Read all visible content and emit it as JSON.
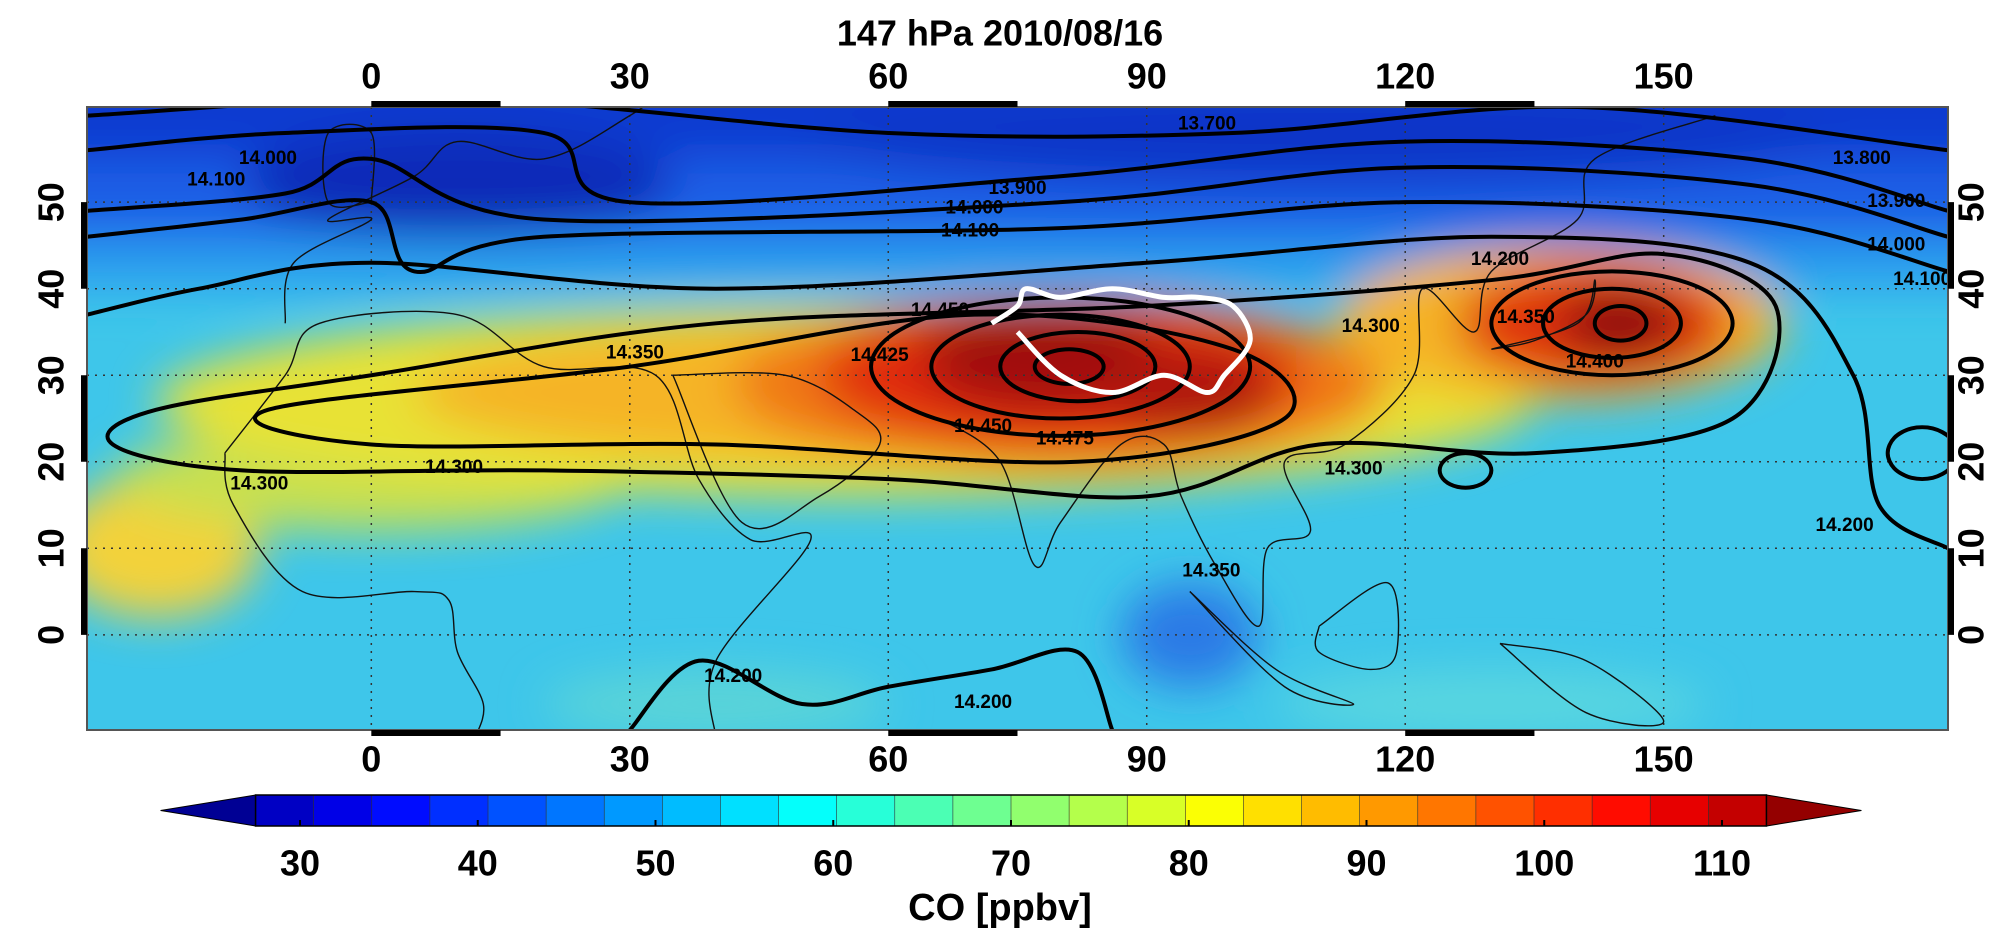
{
  "title": "147 hPa 2010/08/16",
  "map": {
    "lon_range": [
      -33,
      183
    ],
    "lat_range": [
      -11,
      61
    ],
    "lon_ticks": [
      0,
      30,
      60,
      90,
      120,
      150
    ],
    "lat_ticks": [
      0,
      10,
      20,
      30,
      40,
      50
    ],
    "grid": true,
    "contour_labels": [
      "13.700",
      "13.800",
      "13.900",
      "14.000",
      "14.100",
      "14.000",
      "14.100",
      "13.900",
      "14.000",
      "14.100",
      "14.200",
      "14.350",
      "14.300",
      "14.400",
      "14.350",
      "14.300",
      "14.300",
      "14.425",
      "14.450",
      "14.475",
      "14.450",
      "14.350",
      "14.300",
      "14.200",
      "14.200",
      "14.200"
    ]
  },
  "colorbar": {
    "range": [
      27.5,
      112.5
    ],
    "ticks": [
      30,
      40,
      50,
      60,
      70,
      80,
      90,
      100,
      110
    ],
    "label": "CO [ppbv]"
  }
}
